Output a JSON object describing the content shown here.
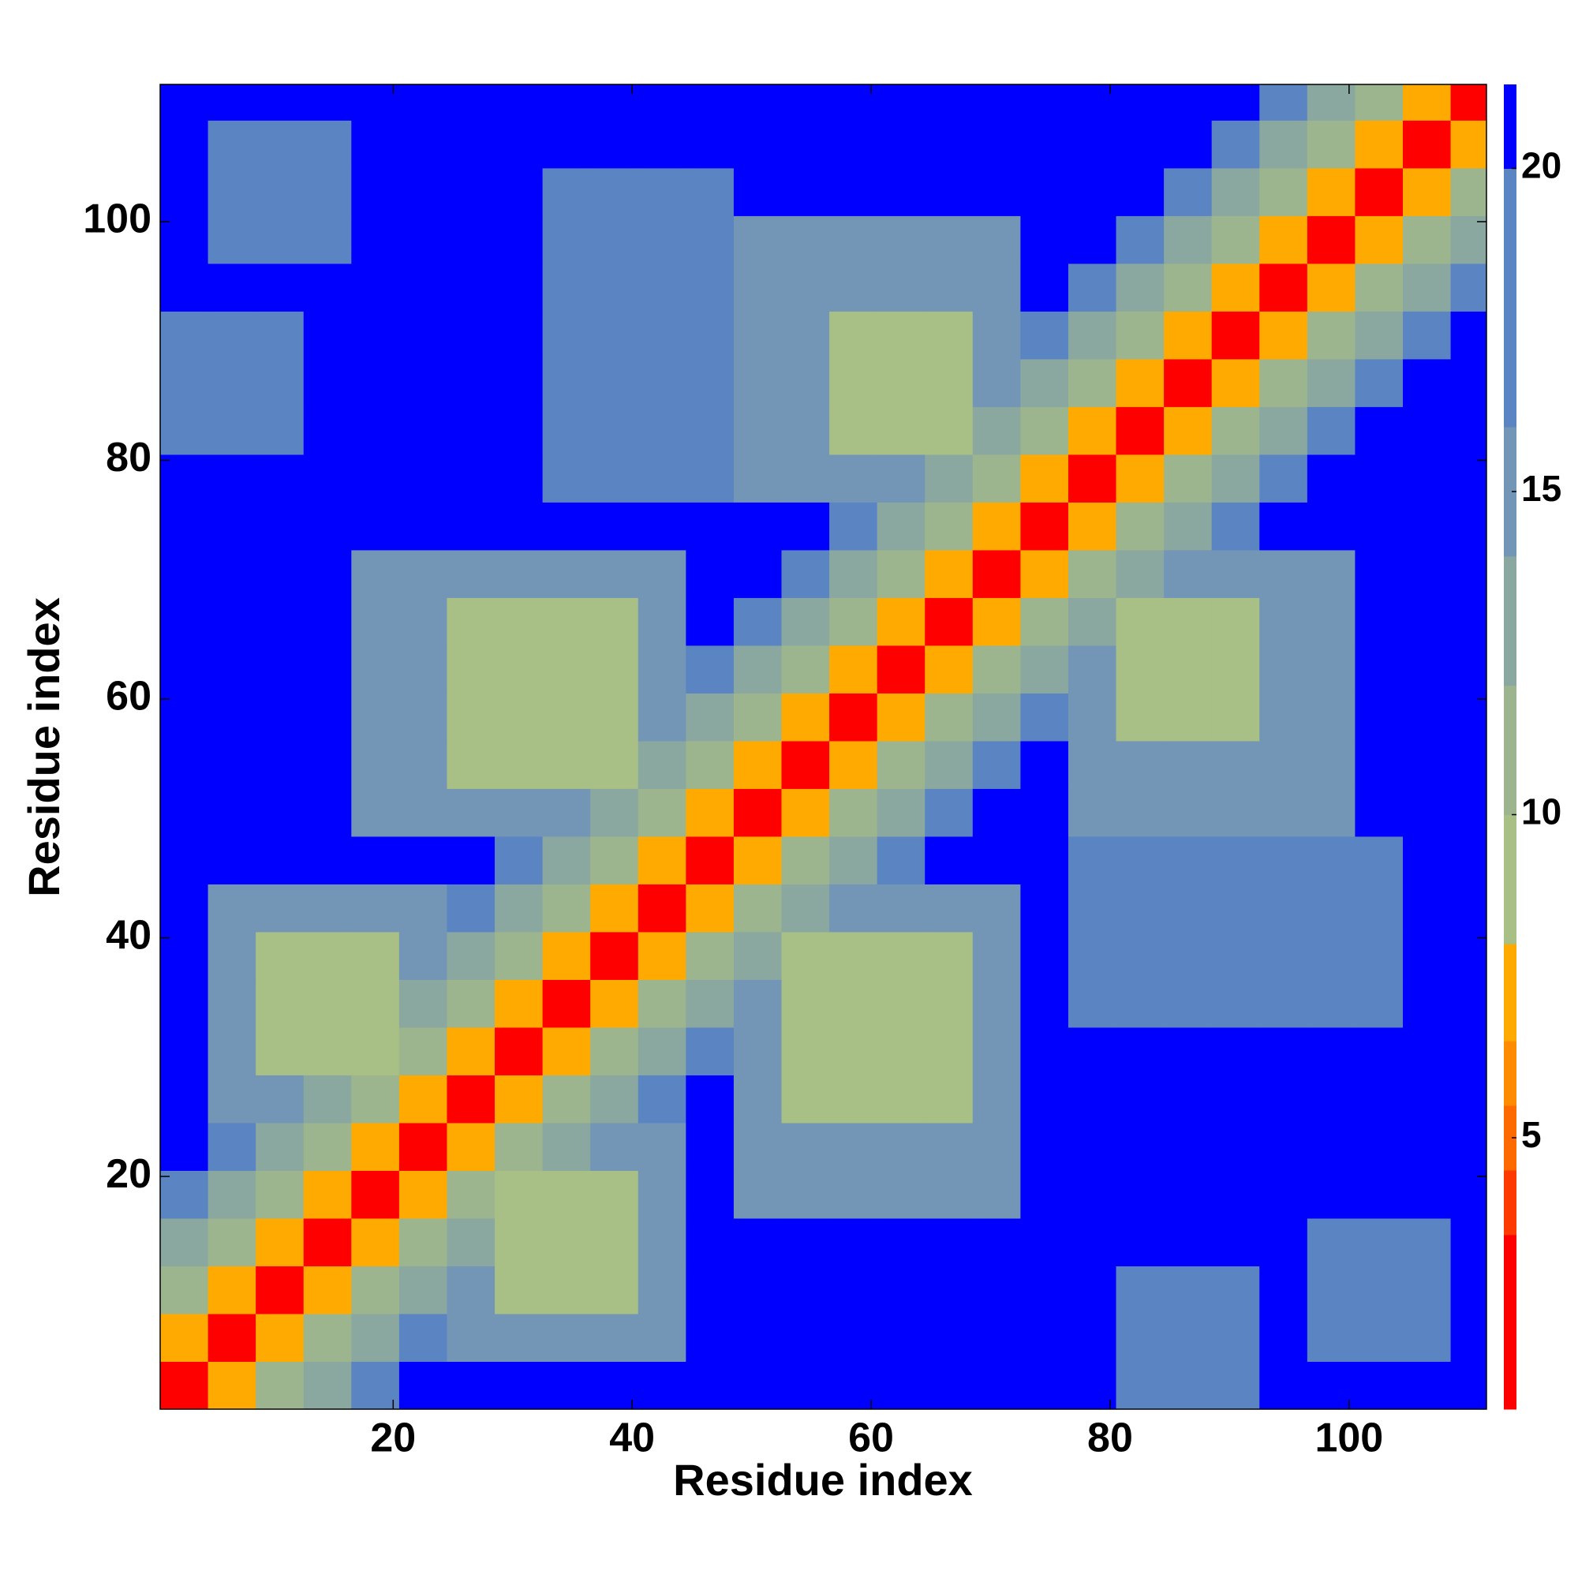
{
  "chart_data": {
    "type": "heatmap",
    "xlabel": "Residue index",
    "ylabel": "Residue index",
    "x": [
      0.5,
      4.5,
      8.5,
      12.5,
      16.5,
      20.5,
      24.5,
      28.5,
      32.5,
      36.5,
      40.5,
      44.5,
      48.5,
      52.5,
      56.5,
      60.5,
      64.5,
      68.5,
      72.5,
      76.5,
      80.5,
      84.5,
      88.5,
      92.5,
      96.5,
      100.5,
      104.5,
      108.5,
      111.5
    ],
    "y": [
      0.5,
      4.5,
      8.5,
      12.5,
      16.5,
      20.5,
      24.5,
      28.5,
      32.5,
      36.5,
      40.5,
      44.5,
      48.5,
      52.5,
      56.5,
      60.5,
      64.5,
      68.5,
      72.5,
      76.5,
      80.5,
      84.5,
      88.5,
      92.5,
      96.5,
      100.5,
      104.5,
      108.5,
      111.5
    ],
    "xlim": [
      0.5,
      111.5
    ],
    "ylim": [
      0.5,
      111.5
    ],
    "xticks": [
      20,
      40,
      60,
      80,
      100
    ],
    "yticks": [
      20,
      40,
      60,
      80,
      100
    ],
    "clim": [
      0.8,
      21.3
    ],
    "cticks": [
      5,
      10,
      15,
      20
    ],
    "color_levels": [
      0.8,
      3.5,
      4.5,
      5.5,
      6.5,
      8,
      10,
      12,
      14,
      16,
      20,
      21.3
    ],
    "colors": [
      "#ff0000",
      "#ff3a00",
      "#ff6a00",
      "#ff8c00",
      "#ffaa00",
      "#a8bf85",
      "#9db58e",
      "#8aa89f",
      "#7396b6",
      "#5b84c2",
      "#0000ff"
    ],
    "z": [
      [
        3,
        7,
        11,
        14,
        17,
        21,
        21,
        21,
        21,
        21,
        21,
        21,
        21,
        21,
        21,
        21,
        21,
        21,
        21,
        21,
        19,
        19,
        19,
        21,
        21,
        21,
        21,
        21
      ],
      [
        7,
        3,
        7,
        11,
        14,
        17,
        15,
        15,
        15,
        15,
        15,
        21,
        21,
        21,
        21,
        21,
        21,
        21,
        21,
        21,
        19,
        19,
        19,
        21,
        19,
        19,
        19,
        21
      ],
      [
        11,
        7,
        3,
        7,
        11,
        14,
        15,
        10,
        10,
        10,
        15,
        21,
        21,
        21,
        21,
        21,
        21,
        21,
        21,
        21,
        19,
        19,
        19,
        21,
        19,
        19,
        19,
        21
      ],
      [
        14,
        11,
        7,
        3,
        7,
        11,
        14,
        10,
        10,
        10,
        15,
        21,
        21,
        21,
        21,
        21,
        21,
        21,
        21,
        21,
        21,
        21,
        21,
        21,
        19,
        19,
        19,
        21
      ],
      [
        17,
        14,
        11,
        7,
        3,
        7,
        11,
        10,
        10,
        10,
        15,
        21,
        15,
        15,
        15,
        15,
        15,
        15,
        21,
        21,
        21,
        21,
        21,
        21,
        21,
        21,
        21,
        21
      ],
      [
        21,
        17,
        14,
        11,
        7,
        3,
        7,
        11,
        14,
        15,
        15,
        21,
        15,
        15,
        15,
        15,
        15,
        15,
        21,
        21,
        21,
        21,
        21,
        21,
        21,
        21,
        21,
        21
      ],
      [
        21,
        15,
        15,
        14,
        11,
        7,
        3,
        7,
        11,
        14,
        17,
        21,
        15,
        10,
        10,
        10,
        10,
        15,
        21,
        21,
        21,
        21,
        21,
        21,
        21,
        21,
        21,
        21
      ],
      [
        21,
        15,
        10,
        10,
        10,
        11,
        7,
        3,
        7,
        11,
        14,
        17,
        15,
        10,
        10,
        10,
        10,
        15,
        21,
        21,
        21,
        21,
        21,
        21,
        21,
        21,
        21,
        21
      ],
      [
        21,
        15,
        10,
        10,
        10,
        14,
        11,
        7,
        3,
        7,
        11,
        14,
        15,
        10,
        10,
        10,
        10,
        15,
        21,
        19,
        19,
        19,
        19,
        19,
        19,
        19,
        21,
        21
      ],
      [
        21,
        15,
        10,
        10,
        10,
        15,
        14,
        11,
        7,
        3,
        7,
        11,
        14,
        10,
        10,
        10,
        10,
        15,
        21,
        19,
        19,
        19,
        19,
        19,
        19,
        19,
        21,
        21
      ],
      [
        21,
        15,
        15,
        15,
        15,
        15,
        17,
        14,
        11,
        7,
        3,
        7,
        11,
        14,
        15,
        15,
        15,
        15,
        21,
        19,
        19,
        19,
        19,
        19,
        19,
        19,
        21,
        21
      ],
      [
        21,
        21,
        21,
        21,
        21,
        21,
        21,
        17,
        14,
        11,
        7,
        3,
        7,
        11,
        14,
        17,
        21,
        21,
        21,
        19,
        19,
        19,
        19,
        19,
        19,
        19,
        21,
        21
      ],
      [
        21,
        21,
        21,
        21,
        15,
        15,
        15,
        15,
        15,
        14,
        11,
        7,
        3,
        7,
        11,
        14,
        17,
        21,
        21,
        15,
        15,
        15,
        15,
        15,
        15,
        21,
        21,
        21
      ],
      [
        21,
        21,
        21,
        21,
        15,
        15,
        10,
        10,
        10,
        10,
        14,
        11,
        7,
        3,
        7,
        11,
        14,
        17,
        21,
        15,
        15,
        15,
        15,
        15,
        15,
        21,
        21,
        21
      ],
      [
        21,
        21,
        21,
        21,
        15,
        15,
        10,
        10,
        10,
        10,
        15,
        14,
        11,
        7,
        3,
        7,
        11,
        14,
        17,
        15,
        10,
        10,
        10,
        15,
        15,
        21,
        21,
        21
      ],
      [
        21,
        21,
        21,
        21,
        15,
        15,
        10,
        10,
        10,
        10,
        15,
        17,
        14,
        11,
        7,
        3,
        7,
        11,
        14,
        15,
        10,
        10,
        10,
        15,
        15,
        21,
        21,
        21
      ],
      [
        21,
        21,
        21,
        21,
        15,
        15,
        10,
        10,
        10,
        10,
        15,
        21,
        17,
        14,
        11,
        7,
        3,
        7,
        11,
        14,
        10,
        10,
        10,
        15,
        15,
        21,
        21,
        21
      ],
      [
        21,
        21,
        21,
        21,
        15,
        15,
        15,
        15,
        15,
        15,
        15,
        21,
        21,
        17,
        14,
        11,
        7,
        3,
        7,
        11,
        14,
        15,
        15,
        15,
        15,
        21,
        21,
        21
      ],
      [
        21,
        21,
        21,
        21,
        21,
        21,
        21,
        21,
        21,
        21,
        21,
        21,
        21,
        21,
        17,
        14,
        11,
        7,
        3,
        7,
        11,
        14,
        17,
        21,
        21,
        21,
        21,
        21
      ],
      [
        21,
        21,
        21,
        21,
        21,
        21,
        21,
        21,
        19,
        19,
        19,
        19,
        15,
        15,
        15,
        15,
        14,
        11,
        7,
        3,
        7,
        11,
        14,
        17,
        21,
        21,
        21,
        21
      ],
      [
        19,
        19,
        19,
        21,
        21,
        21,
        21,
        21,
        19,
        19,
        19,
        19,
        15,
        15,
        10,
        10,
        10,
        14,
        11,
        7,
        3,
        7,
        11,
        14,
        17,
        21,
        21,
        21
      ],
      [
        19,
        19,
        19,
        21,
        21,
        21,
        21,
        21,
        19,
        19,
        19,
        19,
        15,
        15,
        10,
        10,
        10,
        15,
        14,
        11,
        7,
        3,
        7,
        11,
        14,
        17,
        21,
        21
      ],
      [
        19,
        19,
        19,
        21,
        21,
        21,
        21,
        21,
        19,
        19,
        19,
        19,
        15,
        15,
        10,
        10,
        10,
        15,
        17,
        14,
        11,
        7,
        3,
        7,
        11,
        14,
        17,
        21
      ],
      [
        21,
        21,
        21,
        21,
        21,
        21,
        21,
        21,
        19,
        19,
        19,
        19,
        15,
        15,
        15,
        15,
        15,
        15,
        21,
        17,
        14,
        11,
        7,
        3,
        7,
        11,
        14,
        17
      ],
      [
        21,
        19,
        19,
        19,
        21,
        21,
        21,
        21,
        19,
        19,
        19,
        19,
        15,
        15,
        15,
        15,
        15,
        15,
        21,
        21,
        17,
        14,
        11,
        7,
        3,
        7,
        11,
        14
      ],
      [
        21,
        19,
        19,
        19,
        21,
        21,
        21,
        21,
        19,
        19,
        19,
        19,
        21,
        21,
        21,
        21,
        21,
        21,
        21,
        21,
        21,
        17,
        14,
        11,
        7,
        3,
        7,
        11
      ],
      [
        21,
        19,
        19,
        19,
        21,
        21,
        21,
        21,
        21,
        21,
        21,
        21,
        21,
        21,
        21,
        21,
        21,
        21,
        21,
        21,
        21,
        21,
        17,
        14,
        11,
        7,
        3,
        7
      ],
      [
        21,
        21,
        21,
        21,
        21,
        21,
        21,
        21,
        21,
        21,
        21,
        21,
        21,
        21,
        21,
        21,
        21,
        21,
        21,
        21,
        21,
        21,
        21,
        17,
        14,
        11,
        7,
        3
      ]
    ]
  }
}
